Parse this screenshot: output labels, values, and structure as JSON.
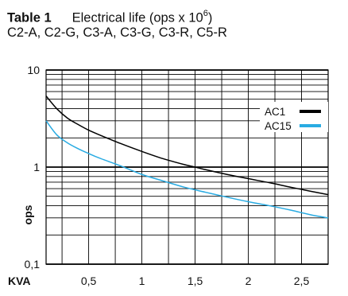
{
  "header": {
    "table_label": "Table 1",
    "title_main": "Electrical life  (ops x 10",
    "title_exp": "6",
    "title_close": ")",
    "subtitle": "C2-A, C2-G, C3-A, C3-G, C3-R, C5-R"
  },
  "chart_data": {
    "type": "line",
    "title": "Electrical life  (ops x 10^6)",
    "subtitle": "C2-A, C2-G, C3-A, C3-G, C3-R, C5-R",
    "xlabel": "KVA",
    "ylabel": "ops",
    "x_scale": "linear",
    "y_scale": "log",
    "xlim": [
      0.1,
      2.75
    ],
    "ylim": [
      0.1,
      10
    ],
    "x_ticks": [
      0.5,
      1,
      1.5,
      2,
      2.5
    ],
    "x_tick_labels": [
      "0,5",
      "1",
      "1,5",
      "2",
      "2,5"
    ],
    "y_ticks": [
      0.1,
      1,
      10
    ],
    "y_tick_labels": [
      "0,1",
      "1",
      "10"
    ],
    "grid": true,
    "legend_placement": "top-right",
    "series": [
      {
        "name": "AC1",
        "color": "#000000",
        "x": [
          0.1,
          0.2,
          0.3,
          0.4,
          0.5,
          0.6,
          0.8,
          1.0,
          1.2,
          1.4,
          1.5,
          1.6,
          1.8,
          2.0,
          2.2,
          2.4,
          2.6,
          2.75
        ],
        "y": [
          5.4,
          4.0,
          3.2,
          2.75,
          2.4,
          2.15,
          1.75,
          1.45,
          1.22,
          1.06,
          1.0,
          0.94,
          0.84,
          0.76,
          0.69,
          0.62,
          0.56,
          0.52
        ]
      },
      {
        "name": "AC15",
        "color": "#29abe2",
        "x": [
          0.1,
          0.2,
          0.3,
          0.4,
          0.5,
          0.6,
          0.8,
          1.0,
          1.2,
          1.4,
          1.6,
          1.8,
          2.0,
          2.2,
          2.4,
          2.6,
          2.75
        ],
        "y": [
          3.0,
          2.15,
          1.78,
          1.55,
          1.38,
          1.24,
          1.03,
          0.84,
          0.72,
          0.62,
          0.55,
          0.49,
          0.44,
          0.4,
          0.36,
          0.32,
          0.3
        ]
      }
    ]
  }
}
